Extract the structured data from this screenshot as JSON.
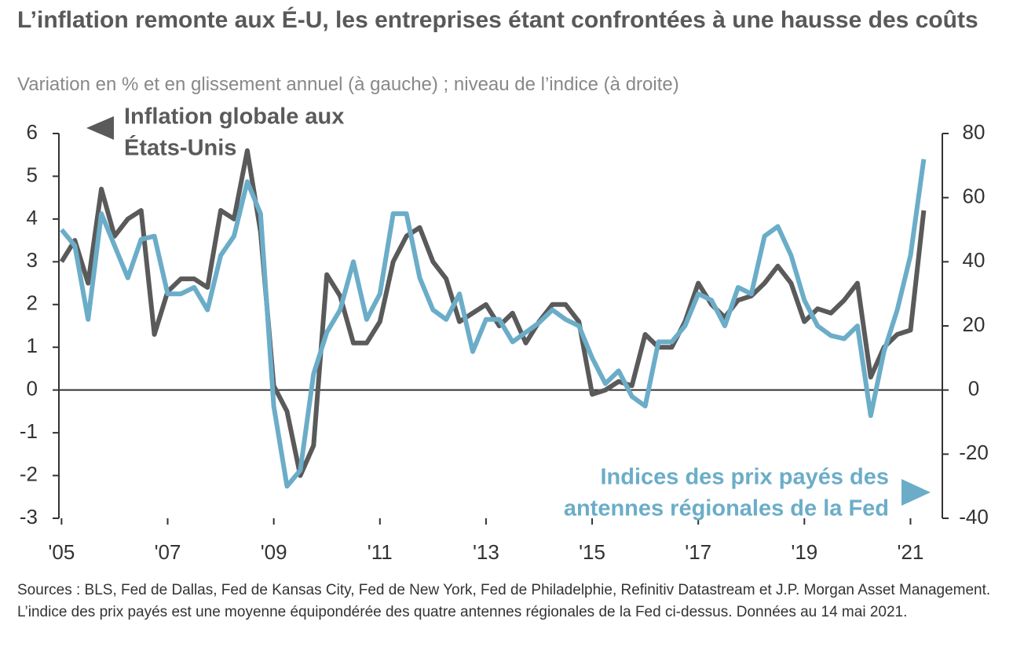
{
  "chart_data": {
    "type": "line",
    "title": "L’inflation remonte aux É-U, les entreprises étant confrontées à une hausse des coûts",
    "subtitle": "Variation en % et en glissement annuel (à gauche) ; niveau de l’indice (à droite)",
    "source": "Sources : BLS, Fed de Dallas, Fed de Kansas City, Fed de New York, Fed de Philadelphie, Refinitiv Datastream et J.P. Morgan Asset Management. L’indice des prix payés est une moyenne équipondérée des quatre antennes régionales de la Fed ci-dessus. Données au 14 mai 2021.",
    "annotations": [
      [
        "Inflation globale aux",
        "États-Unis"
      ],
      [
        "Indices des prix payés des",
        "antennes régionales de la Fed"
      ]
    ],
    "x": [
      2005.0,
      2005.25,
      2005.5,
      2005.75,
      2006.0,
      2006.25,
      2006.5,
      2006.75,
      2007.0,
      2007.25,
      2007.5,
      2007.75,
      2008.0,
      2008.25,
      2008.5,
      2008.75,
      2009.0,
      2009.25,
      2009.5,
      2009.75,
      2010.0,
      2010.25,
      2010.5,
      2010.75,
      2011.0,
      2011.25,
      2011.5,
      2011.75,
      2012.0,
      2012.25,
      2012.5,
      2012.75,
      2013.0,
      2013.25,
      2013.5,
      2013.75,
      2014.0,
      2014.25,
      2014.5,
      2014.75,
      2015.0,
      2015.25,
      2015.5,
      2015.75,
      2016.0,
      2016.25,
      2016.5,
      2016.75,
      2017.0,
      2017.25,
      2017.5,
      2017.75,
      2018.0,
      2018.25,
      2018.5,
      2018.75,
      2019.0,
      2019.25,
      2019.5,
      2019.75,
      2020.0,
      2020.25,
      2020.5,
      2020.75,
      2021.0,
      2021.25
    ],
    "series": [
      {
        "name": "Inflation globale aux États-Unis",
        "color": "#5a5a5a",
        "axis": "y",
        "values": [
          3.0,
          3.5,
          2.5,
          4.7,
          3.6,
          4.0,
          4.2,
          1.3,
          2.3,
          2.6,
          2.6,
          2.4,
          4.2,
          4.0,
          5.6,
          3.7,
          0.1,
          -0.5,
          -2.0,
          -1.3,
          2.7,
          2.2,
          1.1,
          1.1,
          1.6,
          3.0,
          3.6,
          3.8,
          3.0,
          2.6,
          1.6,
          1.8,
          2.0,
          1.5,
          1.8,
          1.1,
          1.6,
          2.0,
          2.0,
          1.6,
          -0.1,
          0.0,
          0.2,
          0.1,
          1.3,
          1.0,
          1.0,
          1.6,
          2.5,
          2.0,
          1.7,
          2.1,
          2.2,
          2.5,
          2.9,
          2.5,
          1.6,
          1.9,
          1.8,
          2.1,
          2.5,
          0.3,
          1.0,
          1.3,
          1.4,
          4.2
        ]
      },
      {
        "name": "Indices des prix payés des antennes régionales de la Fed",
        "color": "#6badc8",
        "axis": "y2",
        "values": [
          50,
          45,
          22,
          55,
          45,
          35,
          47,
          48,
          30,
          30,
          32,
          25,
          42,
          48,
          65,
          55,
          -5,
          -30,
          -25,
          5,
          18,
          25,
          40,
          22,
          30,
          55,
          55,
          35,
          25,
          22,
          30,
          12,
          22,
          22,
          15,
          18,
          21,
          25,
          22,
          20,
          10,
          2,
          6,
          -2,
          -5,
          15,
          15,
          20,
          30,
          28,
          20,
          32,
          30,
          48,
          51,
          42,
          28,
          20,
          17,
          16,
          20,
          -8,
          12,
          25,
          42,
          72
        ]
      }
    ],
    "xlim": [
      2004.95,
      2021.6
    ],
    "xticks": [
      {
        "value": 2005,
        "label": "'05"
      },
      {
        "value": 2007,
        "label": "'07"
      },
      {
        "value": 2009,
        "label": "'09"
      },
      {
        "value": 2011,
        "label": "'11"
      },
      {
        "value": 2013,
        "label": "'13"
      },
      {
        "value": 2015,
        "label": "'15"
      },
      {
        "value": 2017,
        "label": "'17"
      },
      {
        "value": 2019,
        "label": "'19"
      },
      {
        "value": 2021,
        "label": "'21"
      }
    ],
    "ylim": [
      -3,
      6
    ],
    "yticks": [
      -3,
      -2,
      -1,
      0,
      1,
      2,
      3,
      4,
      5,
      6
    ],
    "y2lim": [
      -40,
      80
    ],
    "y2ticks": [
      -40,
      -20,
      0,
      20,
      40,
      60,
      80
    ]
  }
}
